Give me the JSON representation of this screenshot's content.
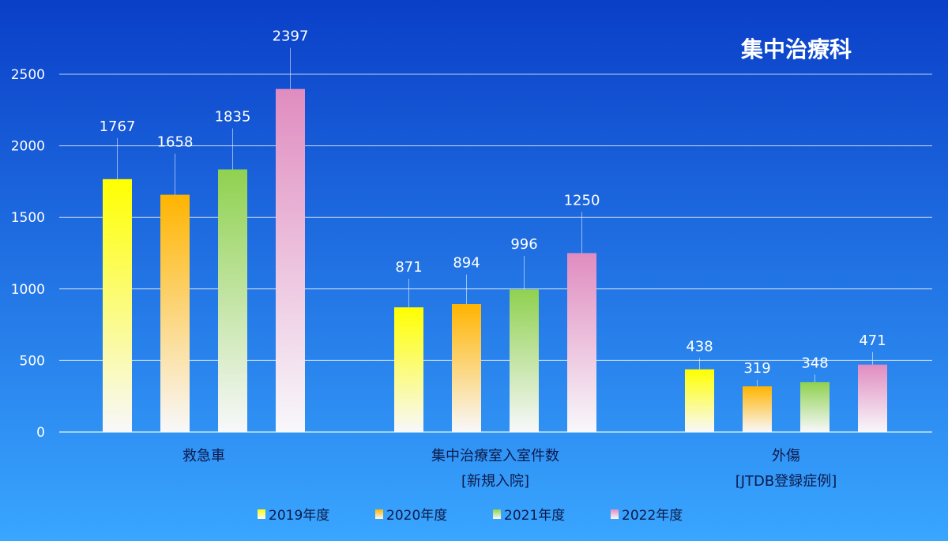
{
  "chart_data": {
    "type": "bar",
    "title": "集中治療科",
    "categories": [
      [
        "救急車"
      ],
      [
        "集中治療室入室件数",
        "[新規入院]"
      ],
      [
        "外傷",
        "[JTDB登録症例]"
      ]
    ],
    "series": [
      {
        "name": "2019年度",
        "values": [
          1767,
          871,
          438
        ],
        "color_top": "#ffff00",
        "color_bottom": "#f8f8fb"
      },
      {
        "name": "2020年度",
        "values": [
          1658,
          894,
          319
        ],
        "color_top": "#ffb400",
        "color_bottom": "#f8f8fb"
      },
      {
        "name": "2021年度",
        "values": [
          1835,
          996,
          348
        ],
        "color_top": "#8fd14f",
        "color_bottom": "#f8f8fb"
      },
      {
        "name": "2022年度",
        "values": [
          2397,
          1250,
          471
        ],
        "color_top": "#e08cc0",
        "color_bottom": "#f8f8fb"
      }
    ],
    "ylim": [
      0,
      2500
    ],
    "yticks": [
      0,
      500,
      1000,
      1500,
      2000,
      2500
    ],
    "grid": true,
    "legend": "bottom",
    "background_top": "#0a3fc8",
    "background_bottom": "#39a6ff"
  }
}
